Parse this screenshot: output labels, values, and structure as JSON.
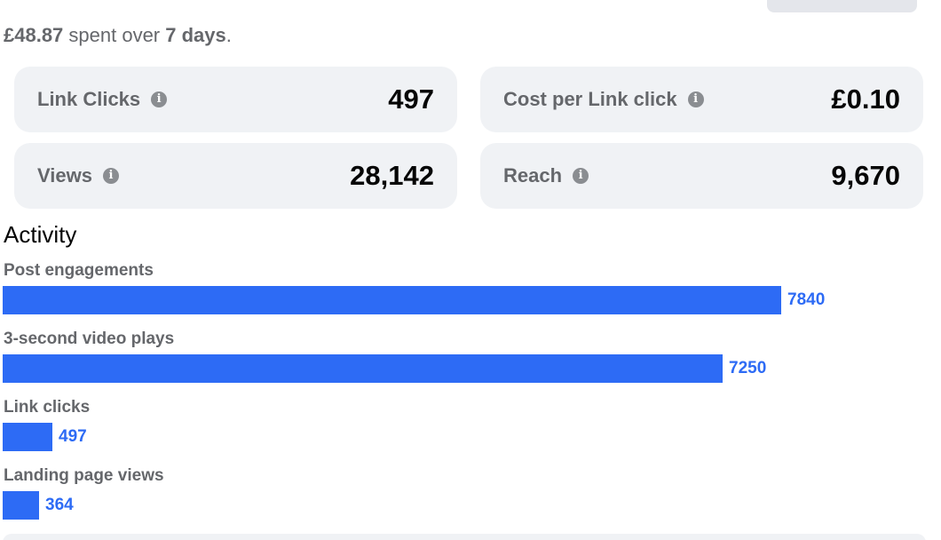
{
  "summary": {
    "amount": "£48.87",
    "spent_over": " spent over ",
    "period": "7 days",
    "period_end": "."
  },
  "stats": [
    {
      "label": "Link Clicks",
      "value": "497"
    },
    {
      "label": "Cost per Link click",
      "value": "£0.10"
    },
    {
      "label": "Views",
      "value": "28,142"
    },
    {
      "label": "Reach",
      "value": "9,670"
    }
  ],
  "activity": {
    "title": "Activity"
  },
  "chart_data": {
    "type": "bar",
    "orientation": "horizontal",
    "categories": [
      "Post engagements",
      "3-second video plays",
      "Link clicks",
      "Landing page views"
    ],
    "values": [
      7840,
      7250,
      497,
      364
    ],
    "bar_color": "#2d6bf5",
    "title": "",
    "xlabel": "",
    "ylabel": ""
  },
  "colors": {
    "accent": "#2d6bf5",
    "card_bg": "#f0f2f5",
    "muted_text": "#65676b"
  },
  "icons": {
    "info": "info-icon"
  }
}
